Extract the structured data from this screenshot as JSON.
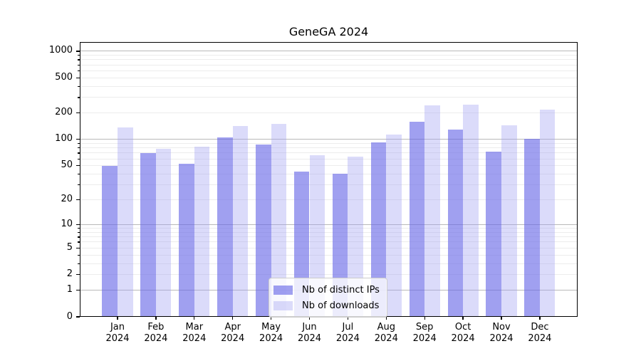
{
  "chart_data": {
    "type": "bar",
    "title": "GeneGA 2024",
    "categories": [
      "Jan 2024",
      "Feb 2024",
      "Mar 2024",
      "Apr 2024",
      "May 2024",
      "Jun 2024",
      "Jul 2024",
      "Aug 2024",
      "Sep 2024",
      "Oct 2024",
      "Nov 2024",
      "Dec 2024"
    ],
    "series": [
      {
        "name": "Nb of distinct IPs",
        "color": "rgba(102,102,230,0.62)",
        "solid_color": "#a2a2f0",
        "values": [
          50,
          70,
          53,
          106,
          88,
          43,
          40,
          93,
          158,
          129,
          73,
          102
        ]
      },
      {
        "name": "Nb of downloads",
        "color": "rgba(160,160,243,0.38)",
        "solid_color": "#dbdbfa",
        "values": [
          136,
          78,
          82,
          143,
          150,
          66,
          64,
          113,
          243,
          248,
          146,
          216
        ]
      }
    ],
    "xlabel": "",
    "ylabel": "",
    "y_axis": {
      "scale": "log1p",
      "ticks": [
        1000,
        500,
        200,
        100,
        50,
        20,
        10,
        5,
        2,
        1,
        0
      ],
      "range": [
        0,
        1270
      ]
    },
    "grid": {
      "visible": true,
      "major_at": [
        1,
        10,
        100,
        1000
      ],
      "minor_per_decade": [
        2,
        3,
        4,
        5,
        6,
        7,
        8,
        9
      ]
    },
    "legend": {
      "position": "inside-bottom-center"
    },
    "colors": {
      "background": "#ffffff",
      "axis": "#000000",
      "grid_major": "#b9b9b9",
      "grid_minor": "#ececec"
    }
  }
}
